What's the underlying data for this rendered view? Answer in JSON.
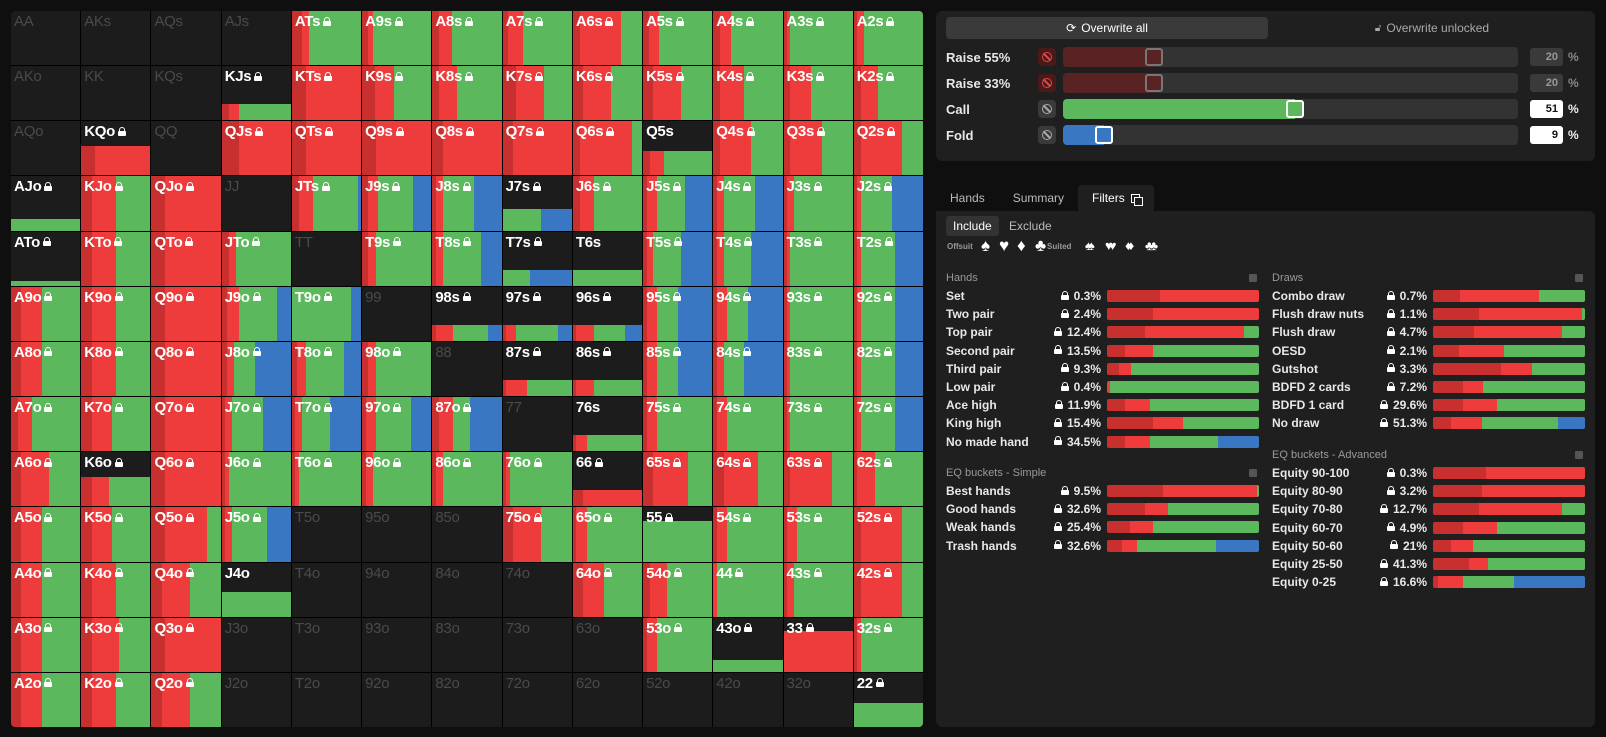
{
  "colors": {
    "raise_big": "#c83030",
    "raise_small": "#ee3c3c",
    "call": "#5cb85c",
    "fold": "#3977c2",
    "empty": "#1c1c1c"
  },
  "range_grid": [
    [
      "AA",
      "AKs",
      "AQs",
      "AJs",
      "ATs",
      "A9s",
      "A8s",
      "A7s",
      "A6s",
      "A5s",
      "A4s",
      "A3s",
      "A2s"
    ],
    [
      "AKo",
      "KK",
      "KQs",
      "KJs",
      "KTs",
      "K9s",
      "K8s",
      "K7s",
      "K6s",
      "K5s",
      "K4s",
      "K3s",
      "K2s"
    ],
    [
      "AQo",
      "KQo",
      "QQ",
      "QJs",
      "QTs",
      "Q9s",
      "Q8s",
      "Q7s",
      "Q6s",
      "Q5s",
      "Q4s",
      "Q3s",
      "Q2s"
    ],
    [
      "AJo",
      "KJo",
      "QJo",
      "JJ",
      "JTs",
      "J9s",
      "J8s",
      "J7s",
      "J6s",
      "J5s",
      "J4s",
      "J3s",
      "J2s"
    ],
    [
      "ATo",
      "KTo",
      "QTo",
      "JTo",
      "TT",
      "T9s",
      "T8s",
      "T7s",
      "T6s",
      "T5s",
      "T4s",
      "T3s",
      "T2s"
    ],
    [
      "A9o",
      "K9o",
      "Q9o",
      "J9o",
      "T9o",
      "99",
      "98s",
      "97s",
      "96s",
      "95s",
      "94s",
      "93s",
      "92s"
    ],
    [
      "A8o",
      "K8o",
      "Q8o",
      "J8o",
      "T8o",
      "98o",
      "88",
      "87s",
      "86s",
      "85s",
      "84s",
      "83s",
      "82s"
    ],
    [
      "A7o",
      "K7o",
      "Q7o",
      "J7o",
      "T7o",
      "97o",
      "87o",
      "77",
      "76s",
      "75s",
      "74s",
      "73s",
      "72s"
    ],
    [
      "A6o",
      "K6o",
      "Q6o",
      "J6o",
      "T6o",
      "96o",
      "86o",
      "76o",
      "66",
      "65s",
      "64s",
      "63s",
      "62s"
    ],
    [
      "A5o",
      "K5o",
      "Q5o",
      "J5o",
      "T5o",
      "95o",
      "85o",
      "75o",
      "65o",
      "55",
      "54s",
      "53s",
      "52s"
    ],
    [
      "A4o",
      "K4o",
      "Q4o",
      "J4o",
      "T4o",
      "94o",
      "84o",
      "74o",
      "64o",
      "54o",
      "44",
      "43s",
      "42s"
    ],
    [
      "A3o",
      "K3o",
      "Q3o",
      "J3o",
      "T3o",
      "93o",
      "83o",
      "73o",
      "63o",
      "53o",
      "43o",
      "33",
      "32s"
    ],
    [
      "A2o",
      "K2o",
      "Q2o",
      "J2o",
      "T2o",
      "92o",
      "82o",
      "72o",
      "62o",
      "52o",
      "42o",
      "32o",
      "22"
    ]
  ],
  "strategy": {
    "toolbar": {
      "overwrite_all": "Overwrite all",
      "overwrite_unlocked": "Overwrite unlocked"
    },
    "actions": [
      {
        "name": "Raise 55%",
        "value": "20",
        "percent": 20,
        "color": "#c83030",
        "disabled": true
      },
      {
        "name": "Raise 33%",
        "value": "20",
        "percent": 20,
        "color": "#ee3c3c",
        "disabled": true
      },
      {
        "name": "Call",
        "value": "51",
        "percent": 51,
        "color": "#5cb85c",
        "disabled": false
      },
      {
        "name": "Fold",
        "value": "9",
        "percent": 9,
        "color": "#3977c2",
        "disabled": false
      }
    ],
    "pct_sign": "%"
  },
  "tabs": {
    "hands": "Hands",
    "summary": "Summary",
    "filters": "Filters"
  },
  "filters": {
    "include": "Include",
    "exclude": "Exclude",
    "offsuit_label": "Offsuit",
    "suited_label": "Suited",
    "offsuit_suits": [
      "♠",
      "♥",
      "♦",
      "♣"
    ],
    "suited_suits": [
      "♠♠",
      "♥♥",
      "♦♦",
      "♣♣"
    ],
    "hands": {
      "title": "Hands",
      "rows": [
        {
          "name": "Set",
          "value": "0.3%",
          "bar": [
            35,
            65,
            0,
            0
          ]
        },
        {
          "name": "Two pair",
          "value": "2.4%",
          "bar": [
            30,
            70,
            0,
            0
          ]
        },
        {
          "name": "Top pair",
          "value": "12.4%",
          "bar": [
            25,
            65,
            10,
            0
          ]
        },
        {
          "name": "Second pair",
          "value": "13.5%",
          "bar": [
            12,
            18,
            70,
            0
          ]
        },
        {
          "name": "Third pair",
          "value": "9.3%",
          "bar": [
            8,
            8,
            84,
            0
          ]
        },
        {
          "name": "Low pair",
          "value": "0.4%",
          "bar": [
            0,
            2,
            98,
            0
          ]
        },
        {
          "name": "Ace high",
          "value": "11.9%",
          "bar": [
            12,
            16,
            72,
            0
          ]
        },
        {
          "name": "King high",
          "value": "15.4%",
          "bar": [
            30,
            20,
            50,
            0
          ]
        },
        {
          "name": "No made hand",
          "value": "34.5%",
          "bar": [
            12,
            16,
            45,
            27
          ]
        }
      ]
    },
    "eq_simple": {
      "title": "EQ buckets - Simple",
      "rows": [
        {
          "name": "Best hands",
          "value": "9.5%",
          "bar": [
            37,
            62,
            1,
            0
          ]
        },
        {
          "name": "Good hands",
          "value": "32.6%",
          "bar": [
            25,
            15,
            60,
            0
          ]
        },
        {
          "name": "Weak hands",
          "value": "25.4%",
          "bar": [
            15,
            15,
            70,
            0
          ]
        },
        {
          "name": "Trash hands",
          "value": "32.6%",
          "bar": [
            10,
            10,
            52,
            28
          ]
        }
      ]
    },
    "draws": {
      "title": "Draws",
      "rows": [
        {
          "name": "Combo draw",
          "value": "0.7%",
          "bar": [
            18,
            52,
            30,
            0
          ]
        },
        {
          "name": "Flush draw nuts",
          "value": "1.1%",
          "bar": [
            30,
            68,
            2,
            0
          ]
        },
        {
          "name": "Flush draw",
          "value": "4.7%",
          "bar": [
            27,
            58,
            15,
            0
          ]
        },
        {
          "name": "OESD",
          "value": "2.1%",
          "bar": [
            17,
            30,
            53,
            0
          ]
        },
        {
          "name": "Gutshot",
          "value": "3.3%",
          "bar": [
            45,
            20,
            35,
            0
          ]
        },
        {
          "name": "BDFD 2 cards",
          "value": "7.2%",
          "bar": [
            20,
            13,
            67,
            0
          ]
        },
        {
          "name": "BDFD 1 card",
          "value": "29.6%",
          "bar": [
            20,
            22,
            58,
            0
          ]
        },
        {
          "name": "No draw",
          "value": "51.3%",
          "bar": [
            12,
            20,
            50,
            18
          ]
        }
      ]
    },
    "eq_advanced": {
      "title": "EQ buckets - Advanced",
      "rows": [
        {
          "name": "Equity 90-100",
          "value": "0.3%",
          "bar": [
            35,
            65,
            0,
            0
          ]
        },
        {
          "name": "Equity 80-90",
          "value": "3.2%",
          "bar": [
            32,
            68,
            0,
            0
          ]
        },
        {
          "name": "Equity 70-80",
          "value": "12.7%",
          "bar": [
            30,
            55,
            15,
            0
          ]
        },
        {
          "name": "Equity 60-70",
          "value": "4.9%",
          "bar": [
            20,
            22,
            58,
            0
          ]
        },
        {
          "name": "Equity 50-60",
          "value": "21%",
          "bar": [
            12,
            14,
            74,
            0
          ]
        },
        {
          "name": "Equity 25-50",
          "value": "41.3%",
          "bar": [
            24,
            12,
            64,
            0
          ]
        },
        {
          "name": "Equity 0-25",
          "value": "16.6%",
          "bar": [
            3,
            17,
            33,
            47
          ]
        }
      ]
    }
  }
}
